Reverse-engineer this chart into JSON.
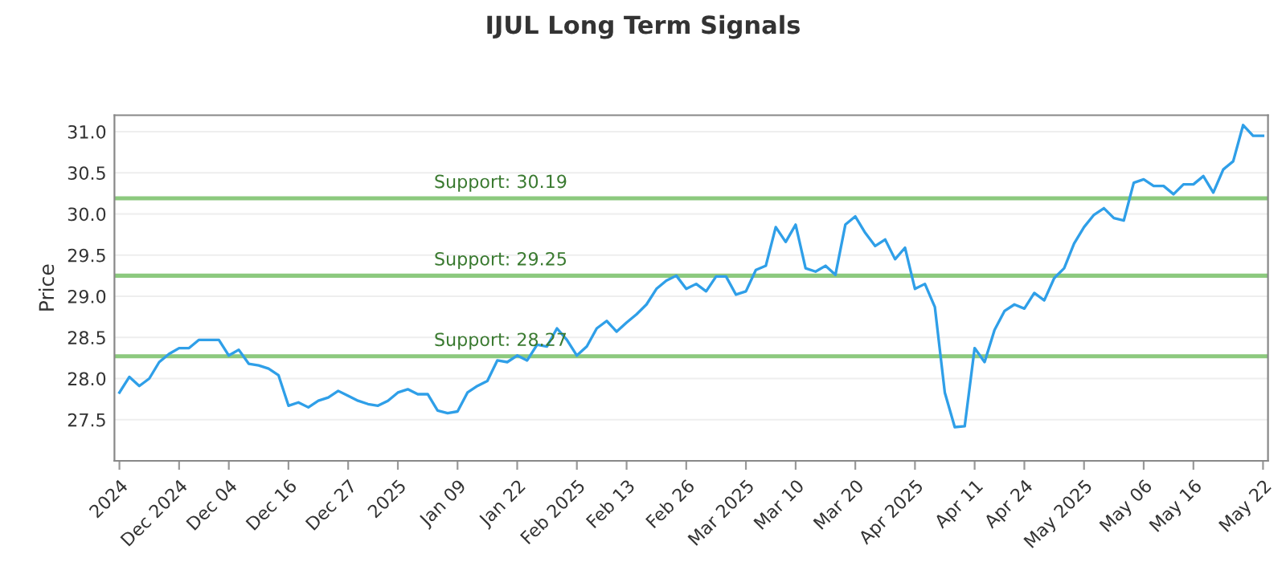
{
  "chart_data": {
    "type": "line",
    "title": "IJUL Long Term Signals",
    "ylabel": "Price",
    "categories": [
      "2024",
      null,
      null,
      null,
      null,
      null,
      "Dec 2024",
      null,
      null,
      null,
      null,
      "Dec 04",
      null,
      null,
      null,
      null,
      null,
      "Dec 16",
      null,
      null,
      null,
      null,
      null,
      "Dec 27",
      null,
      null,
      null,
      null,
      "2025",
      null,
      null,
      null,
      null,
      null,
      "Jan 09",
      null,
      null,
      null,
      null,
      null,
      "Jan 22",
      null,
      null,
      null,
      null,
      null,
      "Feb 2025",
      null,
      null,
      null,
      null,
      "Feb 13",
      null,
      null,
      null,
      null,
      null,
      "Feb 26",
      null,
      null,
      null,
      null,
      null,
      "Mar 2025",
      null,
      null,
      null,
      null,
      "Mar 10",
      null,
      null,
      null,
      null,
      null,
      "Mar 20",
      null,
      null,
      null,
      null,
      null,
      "Apr 2025",
      null,
      null,
      null,
      null,
      null,
      "Apr 11",
      null,
      null,
      null,
      null,
      "Apr 24",
      null,
      null,
      null,
      null,
      null,
      "May 2025",
      null,
      null,
      null,
      null,
      null,
      "May 06",
      null,
      null,
      null,
      null,
      "May 16",
      null,
      null,
      null,
      null,
      null,
      null,
      "May 22"
    ],
    "series": [
      {
        "color": "#2f9fe8",
        "values": [
          27.83,
          28.02,
          27.91,
          28.0,
          28.2,
          28.3,
          28.37,
          28.37,
          28.47,
          28.47,
          28.47,
          28.28,
          28.35,
          28.18,
          28.16,
          28.12,
          28.04,
          27.67,
          27.71,
          27.65,
          27.73,
          27.77,
          27.85,
          27.79,
          27.73,
          27.69,
          27.67,
          27.73,
          27.83,
          27.87,
          27.81,
          27.81,
          27.61,
          27.58,
          27.6,
          27.83,
          27.91,
          27.97,
          28.22,
          28.2,
          28.28,
          28.22,
          28.41,
          28.39,
          28.61,
          28.47,
          28.28,
          28.39,
          28.61,
          28.7,
          28.57,
          28.68,
          28.78,
          28.9,
          29.09,
          29.19,
          29.25,
          29.09,
          29.15,
          29.06,
          29.24,
          29.24,
          29.02,
          29.06,
          29.32,
          29.37,
          29.84,
          29.66,
          29.87,
          29.34,
          29.3,
          29.37,
          29.26,
          29.87,
          29.97,
          29.77,
          29.61,
          29.69,
          29.45,
          29.59,
          29.09,
          29.15,
          28.87,
          27.83,
          27.41,
          27.42,
          28.37,
          28.2,
          28.59,
          28.82,
          28.9,
          28.85,
          29.04,
          28.95,
          29.22,
          29.34,
          29.64,
          29.84,
          29.99,
          30.07,
          29.95,
          29.92,
          30.38,
          30.42,
          30.34,
          30.34,
          30.24,
          30.36,
          30.36,
          30.46,
          30.26,
          30.54,
          30.64,
          31.08,
          30.95,
          30.95
        ]
      }
    ],
    "ylim": [
      27.0,
      31.2
    ],
    "yticks": [
      27.5,
      {
        "value": 28,
        "label": "28.0"
      },
      28.5,
      {
        "value": 29,
        "label": "29.0"
      },
      29.5,
      {
        "value": 30,
        "label": "30.0"
      },
      30.5,
      {
        "value": 31,
        "label": "31.0"
      }
    ],
    "grid": "y",
    "marker": "none",
    "line_style": "solid",
    "ref_lines": [
      {
        "axis": "y",
        "value": 30.19,
        "label": "Support: 30.19",
        "color": "#8cc97e"
      },
      {
        "axis": "y",
        "value": 29.25,
        "label": "Support: 29.25",
        "color": "#8cc97e"
      },
      {
        "axis": "y",
        "value": 28.27,
        "label": "Support: 28.27",
        "color": "#8cc97e"
      }
    ]
  }
}
